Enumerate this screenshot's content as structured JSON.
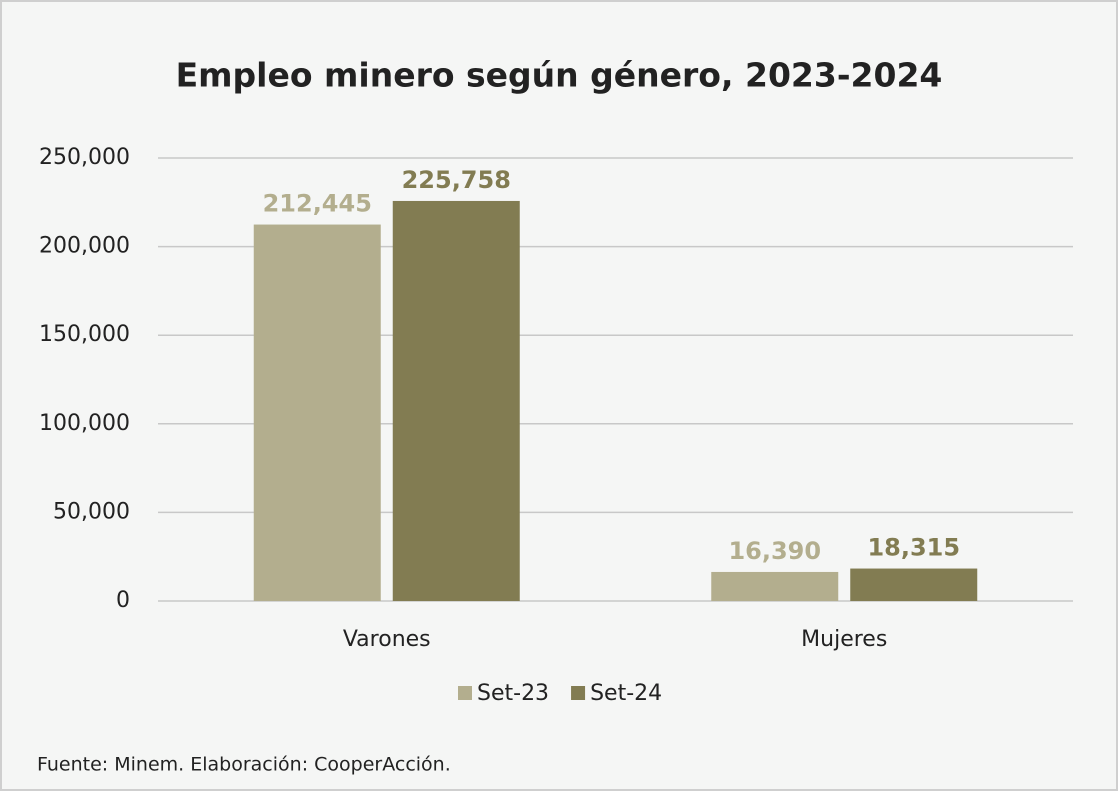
{
  "chart_data": {
    "type": "bar",
    "title": "Empleo minero según género, 2023-2024",
    "categories": [
      "Varones",
      "Mujeres"
    ],
    "series": [
      {
        "name": "Set-23",
        "color": "#b3ae8e",
        "values": [
          212445,
          16390
        ],
        "value_labels": [
          "212,445",
          "16,390"
        ]
      },
      {
        "name": "Set-24",
        "color": "#827c52",
        "values": [
          225758,
          18315
        ],
        "value_labels": [
          "225,758",
          "18,315"
        ]
      }
    ],
    "ylim": [
      0,
      250000
    ],
    "yticks": [
      0,
      {
        "value": 50000,
        "label": "50,000"
      },
      {
        "value": 100000,
        "label": "100,000"
      },
      {
        "value": 150000,
        "label": "150,000"
      },
      {
        "value": 200000,
        "label": "200,000"
      },
      {
        "value": 250000,
        "label": "250,000"
      }
    ],
    "grid": true,
    "legend": "bottom",
    "source": "Fuente: Minem. Elaboración: CooperAcción."
  }
}
